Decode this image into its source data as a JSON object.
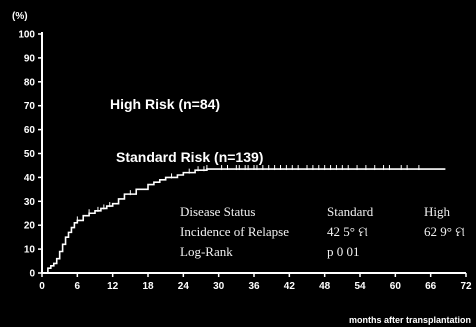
{
  "chart_data": {
    "type": "line",
    "title": "",
    "y_unit": "(%)",
    "xlabel": "months after transplantation",
    "ylabel": "",
    "xlim": [
      0,
      72
    ],
    "ylim": [
      0,
      100
    ],
    "x_ticks": [
      0,
      6,
      12,
      18,
      24,
      30,
      36,
      42,
      48,
      54,
      60,
      66,
      72
    ],
    "y_ticks": [
      0,
      10,
      20,
      30,
      40,
      50,
      60,
      70,
      80,
      90,
      100
    ],
    "grid": false,
    "series": [
      {
        "name": "Standard Risk (n=139)",
        "color": "#ffffff",
        "x": [
          0,
          1,
          1.5,
          2,
          2.5,
          3,
          3.5,
          4,
          4.5,
          5,
          5.5,
          6,
          7,
          8,
          9,
          10,
          11,
          12,
          13,
          14,
          16,
          18,
          19,
          20,
          21,
          23,
          24,
          26,
          28,
          30,
          40,
          50,
          60,
          68.5
        ],
        "y": [
          0,
          2,
          3,
          4,
          6,
          9,
          12,
          15,
          17,
          19,
          21,
          22,
          24,
          25,
          26,
          27,
          28,
          29,
          31,
          33,
          35,
          37,
          38,
          39,
          40,
          41,
          42,
          43,
          43.5,
          43.5,
          43.5,
          43.5,
          43.5,
          43.5
        ],
        "censor_x": [
          6,
          8,
          9.5,
          10.5,
          11.5,
          15,
          22,
          25,
          26.5,
          27.5,
          28,
          30.5,
          31.5,
          33,
          33.5,
          34.5,
          35,
          36,
          36.5,
          37.5,
          38.5,
          39.5,
          40.5,
          41.5,
          42.5,
          43.5,
          45,
          46,
          47,
          48,
          49,
          50,
          51,
          52,
          53.5,
          55,
          56.5,
          58,
          59,
          61,
          62,
          64
        ]
      },
      {
        "name": "High Risk (n=84)",
        "color": "#ffffff",
        "x": [],
        "y": []
      }
    ],
    "annotation_table": {
      "rows": [
        [
          "Disease Status",
          "Standard",
          "High"
        ],
        [
          "Incidence of Relapse",
          "42 5° ମ",
          "62 9° ମ"
        ],
        [
          "Log-Rank",
          "p  0 01",
          ""
        ]
      ]
    }
  }
}
